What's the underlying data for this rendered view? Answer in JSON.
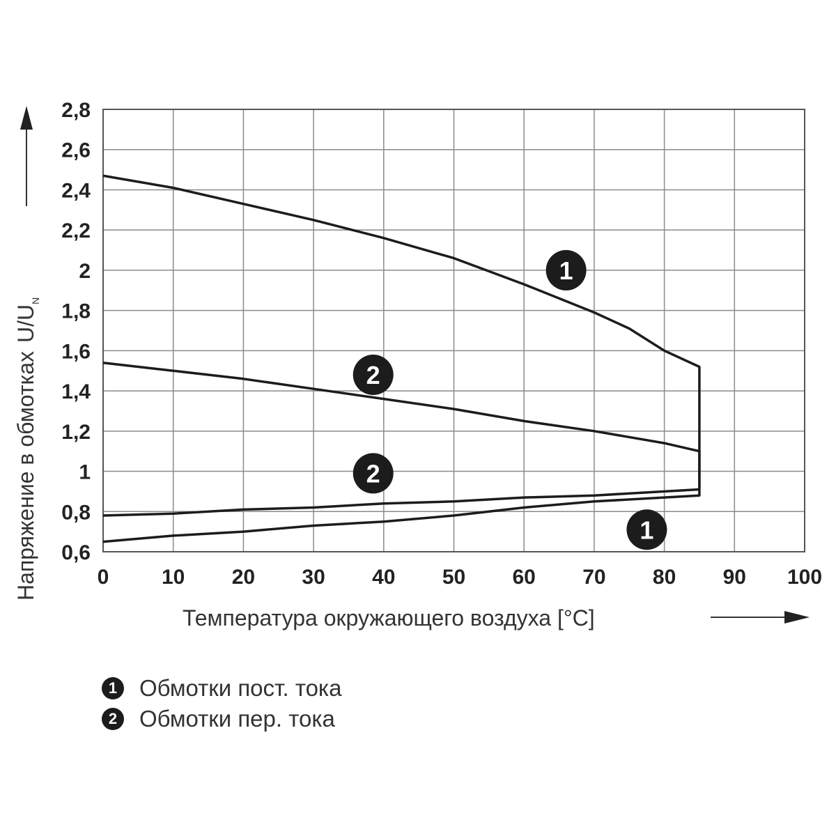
{
  "chart_data": {
    "type": "line",
    "xlabel": "Температура окружающего воздуха [°C]",
    "ylabel": "Напряжение в обмотках",
    "ylabel_unit": "U/U",
    "ylabel_unit_sub": "N",
    "xlim": [
      0,
      100
    ],
    "ylim": [
      0.6,
      2.8
    ],
    "xticks": [
      "0",
      "10",
      "20",
      "30",
      "40",
      "50",
      "60",
      "70",
      "80",
      "90",
      "100"
    ],
    "yticks": [
      "0,6",
      "0,8",
      "1",
      "1,2",
      "1,4",
      "1,6",
      "1,8",
      "2",
      "2,2",
      "2,4",
      "2,6",
      "2,8"
    ],
    "grid": true,
    "series": [
      {
        "marker": "1",
        "outline": [
          {
            "x": 0,
            "y": 2.47
          },
          {
            "x": 10,
            "y": 2.41
          },
          {
            "x": 20,
            "y": 2.33
          },
          {
            "x": 30,
            "y": 2.25
          },
          {
            "x": 40,
            "y": 2.16
          },
          {
            "x": 50,
            "y": 2.06
          },
          {
            "x": 60,
            "y": 1.93
          },
          {
            "x": 70,
            "y": 1.79
          },
          {
            "x": 75,
            "y": 1.71
          },
          {
            "x": 80,
            "y": 1.6
          },
          {
            "x": 85,
            "y": 1.52
          },
          {
            "x": 85,
            "y": 0.88
          },
          {
            "x": 70,
            "y": 0.85
          },
          {
            "x": 60,
            "y": 0.82
          },
          {
            "x": 50,
            "y": 0.78
          },
          {
            "x": 40,
            "y": 0.75
          },
          {
            "x": 30,
            "y": 0.73
          },
          {
            "x": 20,
            "y": 0.7
          },
          {
            "x": 10,
            "y": 0.68
          },
          {
            "x": 0,
            "y": 0.65
          }
        ],
        "label_positions": [
          {
            "x": 66,
            "y": 2.0
          },
          {
            "x": 77.5,
            "y": 0.71
          }
        ]
      },
      {
        "marker": "2",
        "outline": [
          {
            "x": 0,
            "y": 1.54
          },
          {
            "x": 10,
            "y": 1.5
          },
          {
            "x": 20,
            "y": 1.46
          },
          {
            "x": 30,
            "y": 1.41
          },
          {
            "x": 40,
            "y": 1.36
          },
          {
            "x": 50,
            "y": 1.31
          },
          {
            "x": 60,
            "y": 1.25
          },
          {
            "x": 70,
            "y": 1.2
          },
          {
            "x": 80,
            "y": 1.14
          },
          {
            "x": 85,
            "y": 1.1
          },
          {
            "x": 85,
            "y": 0.91
          },
          {
            "x": 70,
            "y": 0.88
          },
          {
            "x": 60,
            "y": 0.87
          },
          {
            "x": 50,
            "y": 0.85
          },
          {
            "x": 40,
            "y": 0.84
          },
          {
            "x": 30,
            "y": 0.82
          },
          {
            "x": 20,
            "y": 0.81
          },
          {
            "x": 10,
            "y": 0.79
          },
          {
            "x": 0,
            "y": 0.78
          }
        ],
        "label_positions": [
          {
            "x": 38.5,
            "y": 1.48
          },
          {
            "x": 38.5,
            "y": 0.99
          }
        ]
      }
    ],
    "legend": [
      {
        "marker": "1",
        "label": "Обмотки пост. тока"
      },
      {
        "marker": "2",
        "label": "Обмотки пер. тока"
      }
    ],
    "colors": {
      "line": "#1c1c1c",
      "grid": "#8a8a8a",
      "marker_fill": "#1c1c1c"
    }
  }
}
